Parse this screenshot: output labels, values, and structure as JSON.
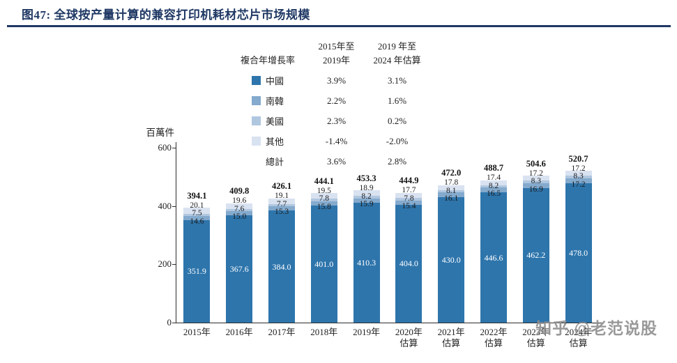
{
  "page": {
    "title": "图47:  全球按产量计算的兼容打印机耗材芯片市场规模",
    "watermark": "知乎 @老范说股"
  },
  "chart_data": {
    "type": "bar",
    "stacked": true,
    "title": "全球按产量计算的兼容打印机耗材芯片市场规模",
    "unit_label": "百萬件",
    "ylim": [
      0,
      600
    ],
    "yticks": [
      0,
      200,
      400,
      600
    ],
    "grid": false,
    "legend_position": "top",
    "categories": [
      "2015年",
      "2016年",
      "2017年",
      "2018年",
      "2019年",
      "2020年\n估算",
      "2021年\n估算",
      "2022年\n估算",
      "2023年\n估算",
      "2024年\n估算"
    ],
    "series": [
      {
        "name": "中國",
        "color": "#2e75ac",
        "values": [
          351.9,
          367.6,
          384.0,
          401.0,
          410.3,
          404.0,
          430.0,
          446.6,
          462.2,
          478.0
        ]
      },
      {
        "name": "南韓",
        "color": "#84aacd",
        "values": [
          14.6,
          15.0,
          15.3,
          15.8,
          15.9,
          15.4,
          16.1,
          16.5,
          16.9,
          17.2
        ]
      },
      {
        "name": "美國",
        "color": "#b0c7e0",
        "values": [
          7.5,
          7.6,
          7.7,
          7.8,
          8.2,
          7.8,
          8.1,
          8.2,
          8.3,
          8.3
        ]
      },
      {
        "name": "其他",
        "color": "#d9e2f0",
        "values": [
          20.1,
          19.6,
          19.1,
          19.5,
          18.9,
          17.7,
          17.8,
          17.4,
          17.2,
          17.2
        ]
      }
    ],
    "totals": [
      394.1,
      409.8,
      426.1,
      444.1,
      453.3,
      444.9,
      472.0,
      488.7,
      504.6,
      520.7
    ],
    "legend_table": {
      "row_label_header": "複合年增長率",
      "col_headers": [
        [
          "2015年至",
          "2019年"
        ],
        [
          "2019 年至",
          "2024 年估算"
        ]
      ],
      "rows": [
        {
          "name": "中國",
          "cagr_2015_2019": "3.9%",
          "cagr_2019_2024": "3.1%"
        },
        {
          "name": "南韓",
          "cagr_2015_2019": "2.2%",
          "cagr_2019_2024": "1.6%"
        },
        {
          "name": "美國",
          "cagr_2015_2019": "2.3%",
          "cagr_2019_2024": "0.2%"
        },
        {
          "name": "其他",
          "cagr_2015_2019": "-1.4%",
          "cagr_2019_2024": "-2.0%"
        },
        {
          "name": "總計",
          "cagr_2015_2019": "3.6%",
          "cagr_2019_2024": "2.8%"
        }
      ]
    }
  }
}
